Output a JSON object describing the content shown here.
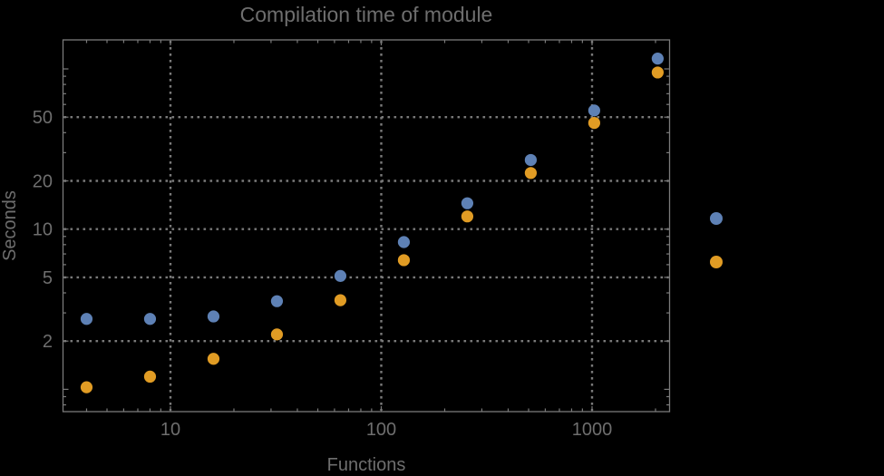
{
  "colors": {
    "background": "#000000",
    "frame": "#7a7a7a",
    "grid": "#7a7a7a",
    "text": "#6e6e6e",
    "series_blue": "#5e81b5",
    "series_orange": "#e19c24"
  },
  "chart_data": {
    "type": "scatter",
    "title": "Compilation time of module",
    "xlabel": "Functions",
    "ylabel": "Seconds",
    "x_scale": "log",
    "y_scale": "log",
    "xlim": [
      3.08,
      2340
    ],
    "ylim": [
      0.73,
      152
    ],
    "grid": "dotted lines at labeled ticks",
    "x": [
      4,
      8,
      16,
      32,
      64,
      128,
      256,
      512,
      1024,
      2048
    ],
    "series": [
      {
        "name": "blue",
        "color": "#5e81b5",
        "values": [
          2.75,
          2.75,
          2.85,
          3.55,
          5.1,
          8.3,
          14.5,
          27,
          55,
          116
        ]
      },
      {
        "name": "orange",
        "color": "#e19c24",
        "values": [
          1.03,
          1.2,
          1.55,
          2.2,
          3.6,
          6.4,
          12,
          22.4,
          46,
          95
        ]
      }
    ],
    "x_ticks_labeled": [
      10,
      100,
      1000
    ],
    "y_ticks_labeled": [
      2,
      5,
      10,
      20,
      50
    ],
    "y_ticks_major_unlabeled": [
      1,
      100
    ],
    "legend": {
      "position": "right-outside",
      "labels_visible": false,
      "markers": [
        "blue",
        "orange"
      ]
    }
  }
}
